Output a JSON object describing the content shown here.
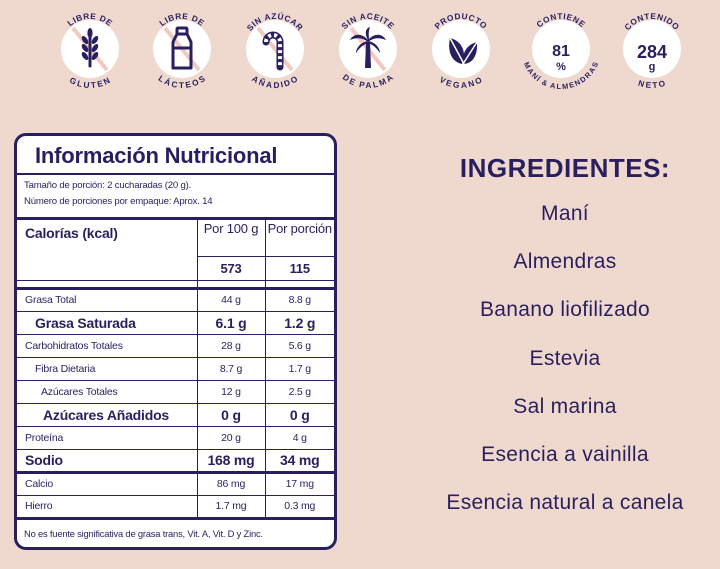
{
  "badges": [
    {
      "top": "LIBRE DE",
      "bottom": "GLUTEN",
      "icon": "wheat-icon"
    },
    {
      "top": "LIBRE DE",
      "bottom": "LÁCTEOS",
      "icon": "milk-bottle-icon"
    },
    {
      "top": "SIN AZÚCAR",
      "bottom": "AÑADIDO",
      "icon": "candy-cane-icon"
    },
    {
      "top": "SIN ACEITE",
      "bottom": "DE PALMA",
      "icon": "palm-tree-icon"
    },
    {
      "top": "PRODUCTO",
      "bottom": "VEGANO",
      "icon": "leaf-icon"
    },
    {
      "top": "CONTIENE",
      "bottom": "MANÍ & ALMENDRAS",
      "value": "81",
      "unit": "%"
    },
    {
      "top": "CONTENIDO",
      "bottom": "NETO",
      "value": "284",
      "unit": "g"
    }
  ],
  "nutrition": {
    "title": "Información Nutricional",
    "serving_size": "Tamaño de porción: 2 cucharadas (20 g).",
    "servings_per_container": "Número de porciones por empaque: Aprox. 14",
    "calories_label": "Calorías (kcal)",
    "col_100g": "Por 100 g",
    "col_portion": "Por porción",
    "calories_100g": "573",
    "calories_portion": "115",
    "rows": [
      {
        "name": "Grasa Total",
        "v100": "44 g",
        "vp": "8.8 g"
      },
      {
        "name": "Grasa Saturada",
        "v100": "6.1 g",
        "vp": "1.2 g"
      },
      {
        "name": "Carbohidratos Totales",
        "v100": "28 g",
        "vp": "5.6 g"
      },
      {
        "name": "Fibra Dietaria",
        "v100": "8.7 g",
        "vp": "1.7 g"
      },
      {
        "name": "Azúcares Totales",
        "v100": "12 g",
        "vp": "2.5 g"
      },
      {
        "name": "Azúcares Añadidos",
        "v100": "0 g",
        "vp": "0 g"
      },
      {
        "name": "Proteína",
        "v100": "20 g",
        "vp": "4 g"
      },
      {
        "name": "Sodio",
        "v100": "168 mg",
        "vp": "34 mg"
      },
      {
        "name": "Calcio",
        "v100": "86 mg",
        "vp": "17 mg"
      },
      {
        "name": "Hierro",
        "v100": "1.7 mg",
        "vp": "0.3 mg"
      }
    ],
    "footnote": "No es fuente significativa de grasa trans, Vit. A, Vit. D y Zinc."
  },
  "ingredients": {
    "title": "INGREDIENTES:",
    "items": [
      "Maní",
      "Almendras",
      "Banano liofilizado",
      "Estevia",
      "Sal marina",
      "Esencia a vainilla",
      "Esencia natural a canela"
    ]
  },
  "colors": {
    "background": "#efd9cf",
    "ink": "#2a1f5e",
    "strike": "#f2c8c1",
    "badge": "#ffffff"
  }
}
